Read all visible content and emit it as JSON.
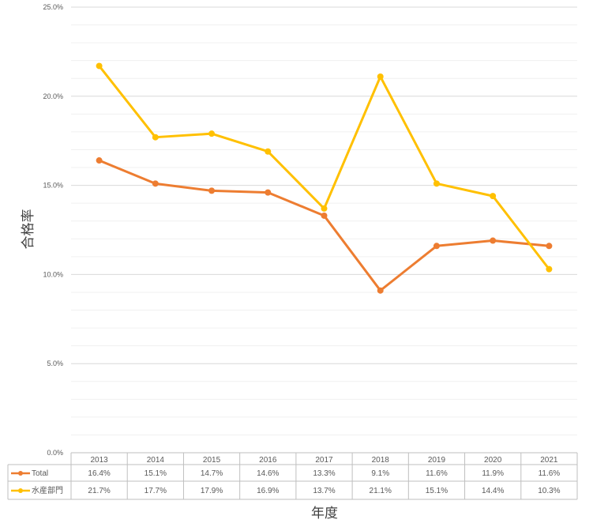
{
  "chart_data": {
    "type": "line",
    "title": "",
    "xlabel": "年度",
    "ylabel": "合格率",
    "categories": [
      "2013",
      "2014",
      "2015",
      "2016",
      "2017",
      "2018",
      "2019",
      "2020",
      "2021"
    ],
    "ylim": [
      0,
      25
    ],
    "yticks": [
      "0.0%",
      "5.0%",
      "10.0%",
      "15.0%",
      "20.0%",
      "25.0%"
    ],
    "grid": true,
    "legend": "data-table",
    "series": [
      {
        "name": "Total",
        "color": "#ED7D31",
        "values": [
          16.4,
          15.1,
          14.7,
          14.6,
          13.3,
          9.1,
          11.6,
          11.9,
          11.6
        ],
        "labels": [
          "16.4%",
          "15.1%",
          "14.7%",
          "14.6%",
          "13.3%",
          "9.1%",
          "11.6%",
          "11.9%",
          "11.6%"
        ]
      },
      {
        "name": "水産部門",
        "color": "#FFC000",
        "values": [
          21.7,
          17.7,
          17.9,
          16.9,
          13.7,
          21.1,
          15.1,
          14.4,
          10.3
        ],
        "labels": [
          "21.7%",
          "17.7%",
          "17.9%",
          "16.9%",
          "13.7%",
          "21.1%",
          "15.1%",
          "14.4%",
          "10.3%"
        ]
      }
    ]
  }
}
